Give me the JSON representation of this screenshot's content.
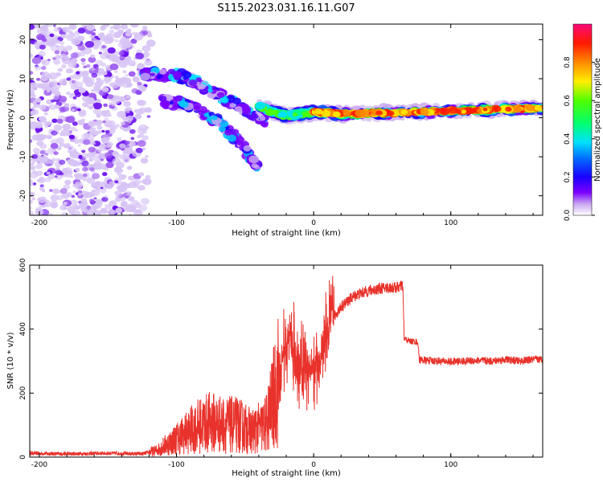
{
  "title": "S115.2023.031.16.11.G07",
  "chart_data": [
    {
      "type": "heatmap",
      "xlabel": "Height of straight line (km)",
      "ylabel": "Frequency (Hz)",
      "xlim": [
        -207,
        167
      ],
      "ylim": [
        -25,
        24
      ],
      "xticks": [
        "-200",
        "-100",
        "0",
        "100"
      ],
      "xtick_values": [
        -200,
        -100,
        0,
        100
      ],
      "yticks": [
        "20",
        "10",
        "0",
        "-10",
        "-20"
      ],
      "ytick_values": [
        20,
        10,
        0,
        -10,
        -20
      ],
      "colorbar": {
        "label": "Normalized spectral amplitude",
        "range": [
          0,
          1
        ],
        "ticks": [
          "0.0",
          "0.2",
          "0.4",
          "0.6",
          "0.8"
        ],
        "tick_values": [
          0.0,
          0.2,
          0.4,
          0.6,
          0.8
        ]
      },
      "features": {
        "noise_region_x": [
          -207,
          -120
        ],
        "noise_freq_range": [
          -25,
          24
        ],
        "upper_branch": [
          [
            -125,
            11.5
          ],
          [
            -110,
            11
          ],
          [
            -95,
            10.5
          ],
          [
            -85,
            9
          ],
          [
            -75,
            7
          ],
          [
            -65,
            5
          ],
          [
            -55,
            3
          ],
          [
            -45,
            1
          ],
          [
            -35,
            -1
          ]
        ],
        "lower_branch": [
          [
            -110,
            4
          ],
          [
            -100,
            4
          ],
          [
            -90,
            3
          ],
          [
            -80,
            1
          ],
          [
            -70,
            -1
          ],
          [
            -60,
            -4
          ],
          [
            -50,
            -8
          ],
          [
            -45,
            -11
          ],
          [
            -40,
            -13
          ]
        ],
        "converging_trace": [
          [
            -40,
            3
          ],
          [
            -30,
            1.5
          ],
          [
            -20,
            0.5
          ],
          [
            -10,
            1
          ],
          [
            0,
            1.5
          ],
          [
            20,
            1
          ],
          [
            50,
            1.2
          ],
          [
            80,
            1.5
          ],
          [
            110,
            1.8
          ],
          [
            140,
            2.2
          ],
          [
            167,
            2.5
          ]
        ]
      }
    },
    {
      "type": "line",
      "xlabel": "Height of straight line (km)",
      "ylabel": "SNR (10 * v/v)",
      "xlim": [
        -207,
        167
      ],
      "ylim": [
        0,
        600
      ],
      "xticks": [
        "-200",
        "-100",
        "0",
        "100"
      ],
      "xtick_values": [
        -200,
        -100,
        0,
        100
      ],
      "yticks": [
        "0",
        "200",
        "400",
        "600"
      ],
      "ytick_values": [
        0,
        200,
        400,
        600
      ],
      "series_color": "#e8322b",
      "x": [
        -207,
        -180,
        -150,
        -125,
        -115,
        -105,
        -95,
        -85,
        -75,
        -65,
        -55,
        -45,
        -35,
        -28,
        -22,
        -18,
        -12,
        -6,
        0,
        6,
        12,
        20,
        30,
        40,
        50,
        60,
        65,
        66,
        70,
        76,
        77,
        80,
        90,
        100,
        110,
        120,
        130,
        140,
        150,
        160,
        167
      ],
      "y": [
        12,
        10,
        12,
        10,
        20,
        45,
        70,
        95,
        110,
        100,
        100,
        80,
        100,
        200,
        320,
        380,
        300,
        260,
        280,
        320,
        420,
        470,
        505,
        520,
        528,
        530,
        535,
        370,
        362,
        360,
        305,
        303,
        300,
        298,
        300,
        302,
        300,
        305,
        300,
        305,
        305
      ]
    }
  ]
}
